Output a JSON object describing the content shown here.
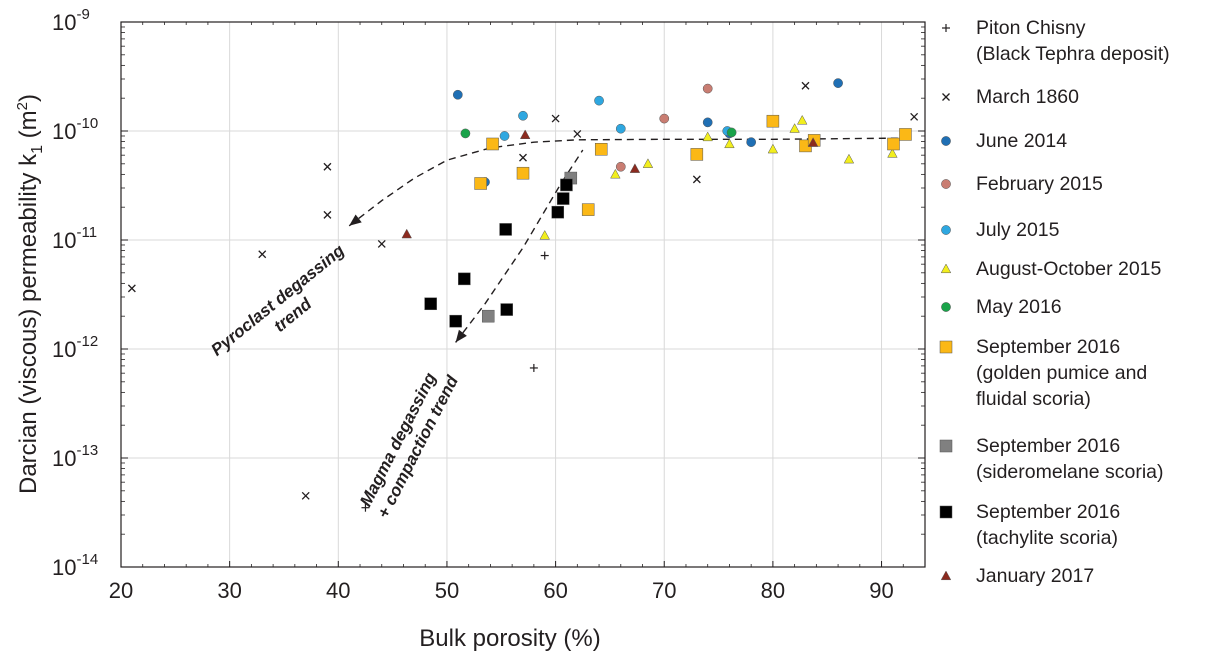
{
  "chart_data": {
    "type": "scatter",
    "x_axis": {
      "label": "Bulk porosity (%)",
      "range": [
        20,
        94
      ],
      "ticks": [
        20,
        30,
        40,
        50,
        60,
        70,
        80,
        90
      ]
    },
    "y_axis": {
      "label_main": "Darcian (viscous) permeability k",
      "label_sub": "1",
      "label_unit_pre": " (m",
      "label_unit_sup": "2",
      "label_unit_post": ")",
      "scale": "log",
      "range": [
        1e-14,
        1e-09
      ],
      "ticks": [
        {
          "base": "10",
          "exp": "-9",
          "value": 1e-09
        },
        {
          "base": "10",
          "exp": "-10",
          "value": 1e-10
        },
        {
          "base": "10",
          "exp": "-11",
          "value": 1e-11
        },
        {
          "base": "10",
          "exp": "-12",
          "value": 1e-12
        },
        {
          "base": "10",
          "exp": "-13",
          "value": 1e-13
        },
        {
          "base": "10",
          "exp": "-14",
          "value": 1e-14
        }
      ]
    },
    "grid": true,
    "legend_position": "right",
    "series": [
      {
        "name": [
          "Piton Chisny",
          "(Black Tephra deposit)"
        ],
        "marker": "plus",
        "color": "#231f20",
        "points": [
          [
            42.5,
            3.5e-14
          ],
          [
            58,
            6.7e-13
          ],
          [
            59,
            7.2e-12
          ]
        ]
      },
      {
        "name": [
          "March 1860"
        ],
        "marker": "cross",
        "color": "#231f20",
        "points": [
          [
            21,
            3.6e-12
          ],
          [
            33,
            7.4e-12
          ],
          [
            37,
            4.5e-14
          ],
          [
            39,
            4.7e-11
          ],
          [
            39,
            1.7e-11
          ],
          [
            44,
            9.2e-12
          ],
          [
            57,
            5.7e-11
          ],
          [
            60,
            1.3e-10
          ],
          [
            62,
            9.4e-11
          ],
          [
            73,
            3.6e-11
          ],
          [
            83,
            2.6e-10
          ],
          [
            93,
            1.35e-10
          ]
        ]
      },
      {
        "name": [
          "June 2014"
        ],
        "marker": "circle",
        "color": "#1f6fb4",
        "points": [
          [
            51,
            2.15e-10
          ],
          [
            53.5,
            3.4e-11
          ],
          [
            74,
            1.2e-10
          ],
          [
            76,
            9.5e-11
          ],
          [
            78,
            7.9e-11
          ],
          [
            86,
            2.75e-10
          ]
        ]
      },
      {
        "name": [
          "February 2015"
        ],
        "marker": "circle",
        "color": "#c97d72",
        "points": [
          [
            66,
            4.7e-11
          ],
          [
            70,
            1.3e-10
          ],
          [
            74,
            2.45e-10
          ]
        ]
      },
      {
        "name": [
          "July 2015"
        ],
        "marker": "circle",
        "color": "#2ea7e0",
        "points": [
          [
            55.3,
            9e-11
          ],
          [
            57,
            1.38e-10
          ],
          [
            64,
            1.9e-10
          ],
          [
            66,
            1.05e-10
          ],
          [
            75.8,
            1e-10
          ]
        ]
      },
      {
        "name": [
          "August-October 2015"
        ],
        "marker": "triangle",
        "color": "#f2ee1e",
        "points": [
          [
            59,
            1.1e-11
          ],
          [
            65.5,
            4e-11
          ],
          [
            68.5,
            5e-11
          ],
          [
            74,
            8.8e-11
          ],
          [
            76,
            7.6e-11
          ],
          [
            80,
            6.8e-11
          ],
          [
            82,
            1.05e-10
          ],
          [
            82.7,
            1.25e-10
          ],
          [
            87,
            5.5e-11
          ],
          [
            91,
            6.2e-11
          ]
        ]
      },
      {
        "name": [
          "May 2016"
        ],
        "marker": "circle",
        "color": "#1aa34a",
        "points": [
          [
            51.7,
            9.5e-11
          ],
          [
            76.2,
            9.7e-11
          ]
        ]
      },
      {
        "name": [
          "September 2016",
          "(golden pumice and",
          "fluidal scoria)"
        ],
        "marker": "square",
        "color": "#fbb816",
        "points": [
          [
            53.1,
            3.3e-11
          ],
          [
            54.2,
            7.6e-11
          ],
          [
            57,
            4.1e-11
          ],
          [
            63,
            1.9e-11
          ],
          [
            64.2,
            6.8e-11
          ],
          [
            73,
            6.1e-11
          ],
          [
            80,
            1.23e-10
          ],
          [
            83,
            7.3e-11
          ],
          [
            83.8,
            8.2e-11
          ],
          [
            91.1,
            7.6e-11
          ],
          [
            92.2,
            9.3e-11
          ]
        ]
      },
      {
        "name": [
          "September 2016",
          "(sideromelane scoria)"
        ],
        "marker": "square",
        "color": "#808080",
        "points": [
          [
            53.8,
            2e-12
          ],
          [
            61.4,
            3.7e-11
          ]
        ]
      },
      {
        "name": [
          "September 2016",
          "(tachylite scoria)"
        ],
        "marker": "square",
        "color": "#000000",
        "points": [
          [
            48.5,
            2.6e-12
          ],
          [
            50.8,
            1.8e-12
          ],
          [
            51.6,
            4.4e-12
          ],
          [
            55.4,
            1.25e-11
          ],
          [
            55.5,
            2.3e-12
          ],
          [
            60.2,
            1.8e-11
          ],
          [
            60.7,
            2.4e-11
          ],
          [
            61,
            3.2e-11
          ]
        ]
      },
      {
        "name": [
          "January 2017"
        ],
        "marker": "triangle",
        "color": "#8b2a1f",
        "points": [
          [
            46.3,
            1.13e-11
          ],
          [
            57.2,
            9.2e-11
          ],
          [
            67.3,
            4.5e-11
          ],
          [
            83.7,
            7.8e-11
          ]
        ]
      }
    ],
    "annotations": [
      {
        "text": [
          "Pyroclast degassing",
          "trend"
        ]
      },
      {
        "text": [
          "Magma degassing",
          "+ compaction trend"
        ]
      }
    ],
    "trend_lines": [
      {
        "name": "pyroclast-degassing-trend",
        "points": [
          [
            41,
            1.35e-11
          ],
          [
            44,
            2.3e-11
          ],
          [
            47,
            3.7e-11
          ],
          [
            50,
            5.4e-11
          ],
          [
            54,
            7e-11
          ],
          [
            58,
            7.9e-11
          ],
          [
            62,
            8.3e-11
          ],
          [
            70,
            8.4e-11
          ],
          [
            80,
            8.4e-11
          ],
          [
            92,
            8.6e-11
          ]
        ]
      },
      {
        "name": "magma-degassing-compaction-trend",
        "points": [
          [
            50.8,
            1.15e-12
          ],
          [
            53.5,
            2.6e-12
          ],
          [
            57,
            8.5e-12
          ],
          [
            60.5,
            3.3e-11
          ],
          [
            62.5,
            6.7e-11
          ]
        ]
      }
    ]
  }
}
